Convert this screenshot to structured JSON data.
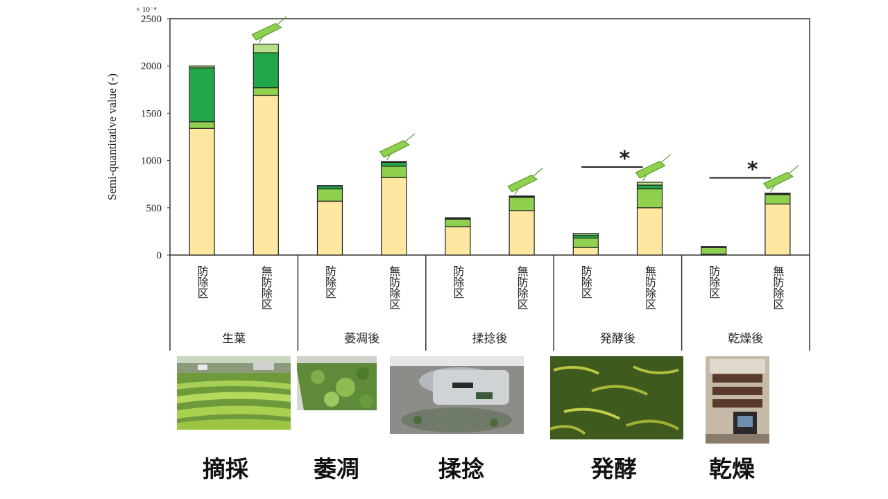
{
  "chart_data": {
    "type": "bar",
    "stacked": true,
    "title": "",
    "ylabel": "Semi-quantitative value (-)",
    "y_exponent_label": "× 10⁻⁴",
    "ylim": [
      0,
      2500
    ],
    "yticks": [
      0,
      500,
      1000,
      1500,
      2000,
      2500
    ],
    "groups": [
      {
        "label": "生葉",
        "bars": [
          {
            "label": "防除区",
            "segments": [
              1340,
              70,
              570,
              20
            ]
          },
          {
            "label": "無防除区",
            "segments": [
              1690,
              80,
              370,
              90
            ],
            "insect": true
          }
        ]
      },
      {
        "label": "萎凋後",
        "bars": [
          {
            "label": "防除区",
            "segments": [
              570,
              130,
              30,
              5
            ]
          },
          {
            "label": "無防除区",
            "segments": [
              820,
              120,
              40,
              10
            ],
            "insect": true
          }
        ]
      },
      {
        "label": "揉捻後",
        "bars": [
          {
            "label": "防除区",
            "segments": [
              300,
              80,
              10,
              5
            ]
          },
          {
            "label": "無防除区",
            "segments": [
              470,
              140,
              10,
              5
            ],
            "insect": true
          }
        ]
      },
      {
        "label": "発酵後",
        "bars": [
          {
            "label": "防除区",
            "segments": [
              80,
              100,
              30,
              20
            ]
          },
          {
            "label": "無防除区",
            "segments": [
              500,
              200,
              40,
              30
            ],
            "insect": true
          }
        ],
        "significance": "*"
      },
      {
        "label": "乾燥後",
        "bars": [
          {
            "label": "防除区",
            "segments": [
              10,
              70,
              5,
              5
            ]
          },
          {
            "label": "無防除区",
            "segments": [
              540,
              100,
              10,
              5
            ],
            "insect": true
          }
        ],
        "significance": "*"
      }
    ],
    "segment_colors": [
      "#fde7a1",
      "#8fd14f",
      "#22a84a",
      "#b8e08a"
    ],
    "grid": false,
    "legend": "none"
  },
  "captions": [
    "摘採",
    "萎凋",
    "揉捻",
    "発酵",
    "乾燥"
  ],
  "photos": [
    "tea-field-photo",
    "withering-leaves-photo",
    "rolling-machine-photo",
    "fermented-leaves-photo",
    "drying-machine-photo"
  ]
}
